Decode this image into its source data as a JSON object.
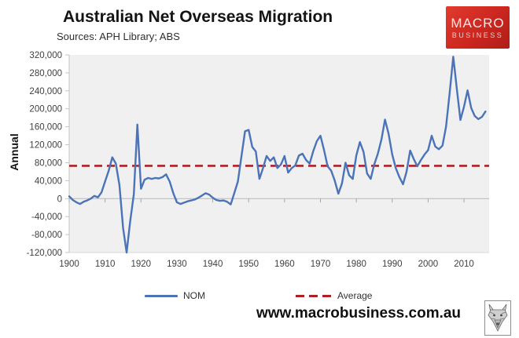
{
  "header": {
    "title": "Australian Net Overseas Migration",
    "subtitle": "Sources: APH Library; ABS",
    "logo": {
      "line1": "MACRO",
      "line2": "BUSINESS",
      "bg_color": "#cb2720"
    }
  },
  "legend": [
    {
      "label": "NOM",
      "color": "#4a73b8",
      "style": "solid"
    },
    {
      "label": "Average",
      "color": "#ad2024",
      "style": "dashed"
    }
  ],
  "footer": {
    "url": "www.macrobusiness.com.au",
    "logo_icon": "wolf-sketch-icon"
  },
  "colors": {
    "nom_line": "#4a73b8",
    "average_line": "#ad2024",
    "plot_background": "#f0f0f0",
    "axis": "#c4c4c4",
    "tick_text": "#404040"
  },
  "chart_data": {
    "type": "line",
    "title": "Australian Net Overseas Migration",
    "subtitle": "Sources: APH Library; ABS",
    "xlabel": "",
    "ylabel": "Annual",
    "ylim": [
      -120000,
      320000
    ],
    "xlim": [
      1900,
      2017
    ],
    "yticks": [
      320000,
      280000,
      240000,
      200000,
      160000,
      120000,
      80000,
      40000,
      0,
      -40000,
      -80000,
      -120000
    ],
    "xticks": [
      1900,
      1910,
      1920,
      1930,
      1940,
      1950,
      1960,
      1970,
      1980,
      1990,
      2000,
      2010
    ],
    "grid": "zero-line-only",
    "legend_position": "bottom",
    "series": [
      {
        "name": "NOM",
        "type": "line",
        "color": "#4a73b8",
        "x": [
          1900,
          1901,
          1902,
          1903,
          1904,
          1905,
          1906,
          1907,
          1908,
          1909,
          1910,
          1911,
          1912,
          1913,
          1914,
          1915,
          1916,
          1917,
          1918,
          1919,
          1920,
          1921,
          1922,
          1923,
          1924,
          1925,
          1926,
          1927,
          1928,
          1929,
          1930,
          1931,
          1932,
          1933,
          1934,
          1935,
          1936,
          1937,
          1938,
          1939,
          1940,
          1941,
          1942,
          1943,
          1944,
          1945,
          1946,
          1947,
          1948,
          1949,
          1950,
          1951,
          1952,
          1953,
          1954,
          1955,
          1956,
          1957,
          1958,
          1959,
          1960,
          1961,
          1962,
          1963,
          1964,
          1965,
          1966,
          1967,
          1968,
          1969,
          1970,
          1971,
          1972,
          1973,
          1974,
          1975,
          1976,
          1977,
          1978,
          1979,
          1980,
          1981,
          1982,
          1983,
          1984,
          1985,
          1986,
          1987,
          1988,
          1989,
          1990,
          1991,
          1992,
          1993,
          1994,
          1995,
          1996,
          1997,
          1998,
          1999,
          2000,
          2001,
          2002,
          2003,
          2004,
          2005,
          2006,
          2007,
          2008,
          2009,
          2010,
          2011,
          2012,
          2013,
          2014,
          2015,
          2016
        ],
        "values": [
          5000,
          -3000,
          -8000,
          -12000,
          -7000,
          -4000,
          0,
          6000,
          3000,
          14000,
          38000,
          62000,
          92000,
          78000,
          30000,
          -65000,
          -120000,
          -50000,
          10000,
          165000,
          22000,
          42000,
          46000,
          44000,
          46000,
          45000,
          48000,
          54000,
          38000,
          12000,
          -8000,
          -12000,
          -9000,
          -6000,
          -4000,
          -2000,
          2000,
          7000,
          12000,
          9000,
          2000,
          -3000,
          -5000,
          -4000,
          -7000,
          -13000,
          12000,
          38000,
          95000,
          150000,
          153000,
          115000,
          105000,
          44000,
          68000,
          95000,
          84000,
          92000,
          68000,
          76000,
          95000,
          58000,
          68000,
          74000,
          96000,
          100000,
          86000,
          78000,
          106000,
          128000,
          140000,
          108000,
          72000,
          62000,
          40000,
          11000,
          34000,
          80000,
          52000,
          44000,
          96000,
          126000,
          104000,
          56000,
          44000,
          76000,
          100000,
          132000,
          176000,
          144000,
          98000,
          68000,
          48000,
          32000,
          60000,
          107000,
          88000,
          72000,
          86000,
          98000,
          108000,
          140000,
          116000,
          110000,
          118000,
          160000,
          235000,
          316000,
          245000,
          175000,
          205000,
          241000,
          202000,
          184000,
          177000,
          182000,
          194000
        ]
      },
      {
        "name": "Average",
        "type": "horizontal-dashed-line",
        "color": "#ad2024",
        "value": 73000
      }
    ]
  }
}
